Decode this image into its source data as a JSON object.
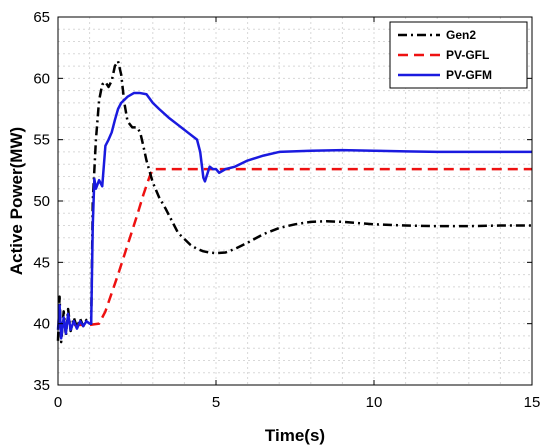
{
  "chart_data": {
    "type": "line",
    "title": "",
    "xlabel": "Time(s)",
    "ylabel": "Active Power(MW)",
    "xlim": [
      0,
      15
    ],
    "ylim": [
      35,
      65
    ],
    "xticks": [
      0,
      5,
      10,
      15
    ],
    "yticks": [
      35,
      40,
      45,
      50,
      55,
      60,
      65
    ],
    "grid": true,
    "legend_position": "top-right",
    "series": [
      {
        "name": "Gen2",
        "color": "#000000",
        "style": "dashdot",
        "points": [
          [
            0,
            38.6
          ],
          [
            0.05,
            42.2
          ],
          [
            0.1,
            38.5
          ],
          [
            0.18,
            41.0
          ],
          [
            0.25,
            39.0
          ],
          [
            0.32,
            41.2
          ],
          [
            0.4,
            39.4
          ],
          [
            0.5,
            40.5
          ],
          [
            0.6,
            39.7
          ],
          [
            0.7,
            40.4
          ],
          [
            0.8,
            39.8
          ],
          [
            0.9,
            40.3
          ],
          [
            1.0,
            40.1
          ],
          [
            1.05,
            40.0
          ],
          [
            1.1,
            50.0
          ],
          [
            1.2,
            55.0
          ],
          [
            1.3,
            58.2
          ],
          [
            1.4,
            59.5
          ],
          [
            1.5,
            59.7
          ],
          [
            1.6,
            59.3
          ],
          [
            1.7,
            59.8
          ],
          [
            1.8,
            61.0
          ],
          [
            1.9,
            61.4
          ],
          [
            2.0,
            60.3
          ],
          [
            2.1,
            58.0
          ],
          [
            2.2,
            56.5
          ],
          [
            2.35,
            56.0
          ],
          [
            2.5,
            56.0
          ],
          [
            2.6,
            55.6
          ],
          [
            2.7,
            54.5
          ],
          [
            2.8,
            53.3
          ],
          [
            3.0,
            51.5
          ],
          [
            3.2,
            50.3
          ],
          [
            3.4,
            49.4
          ],
          [
            3.6,
            48.4
          ],
          [
            3.8,
            47.4
          ],
          [
            4.0,
            46.9
          ],
          [
            4.2,
            46.4
          ],
          [
            4.4,
            46.1
          ],
          [
            4.6,
            45.9
          ],
          [
            4.8,
            45.8
          ],
          [
            5.0,
            45.75
          ],
          [
            5.3,
            45.8
          ],
          [
            5.6,
            46.1
          ],
          [
            6.0,
            46.6
          ],
          [
            6.5,
            47.3
          ],
          [
            7.0,
            47.8
          ],
          [
            7.5,
            48.1
          ],
          [
            8.0,
            48.3
          ],
          [
            8.5,
            48.35
          ],
          [
            9.0,
            48.3
          ],
          [
            9.5,
            48.2
          ],
          [
            10.0,
            48.1
          ],
          [
            11.0,
            48.0
          ],
          [
            12.0,
            47.95
          ],
          [
            13.0,
            47.95
          ],
          [
            14.0,
            48.0
          ],
          [
            15.0,
            48.0
          ]
        ]
      },
      {
        "name": "PV-GFL",
        "color": "#ee1111",
        "style": "dashed",
        "points": [
          [
            0,
            39.8
          ],
          [
            0.5,
            39.9
          ],
          [
            1.0,
            39.9
          ],
          [
            1.3,
            40.0
          ],
          [
            1.5,
            41.0
          ],
          [
            1.7,
            42.5
          ],
          [
            1.9,
            44.0
          ],
          [
            2.1,
            45.6
          ],
          [
            2.3,
            47.2
          ],
          [
            2.5,
            48.8
          ],
          [
            2.7,
            50.5
          ],
          [
            2.9,
            52.0
          ],
          [
            3.0,
            52.6
          ],
          [
            5.0,
            52.6
          ],
          [
            10.0,
            52.6
          ],
          [
            15.0,
            52.6
          ]
        ]
      },
      {
        "name": "PV-GFM",
        "color": "#1a1adf",
        "style": "solid",
        "points": [
          [
            0,
            39.5
          ],
          [
            0.05,
            41.5
          ],
          [
            0.1,
            38.8
          ],
          [
            0.18,
            40.5
          ],
          [
            0.25,
            39.2
          ],
          [
            0.32,
            40.8
          ],
          [
            0.4,
            39.5
          ],
          [
            0.5,
            40.2
          ],
          [
            0.6,
            39.6
          ],
          [
            0.7,
            40.2
          ],
          [
            0.8,
            39.8
          ],
          [
            0.9,
            40.2
          ],
          [
            1.0,
            40.0
          ],
          [
            1.05,
            40.0
          ],
          [
            1.1,
            48.0
          ],
          [
            1.15,
            51.8
          ],
          [
            1.2,
            51.0
          ],
          [
            1.3,
            51.7
          ],
          [
            1.4,
            51.2
          ],
          [
            1.5,
            54.5
          ],
          [
            1.6,
            55.0
          ],
          [
            1.7,
            55.6
          ],
          [
            1.8,
            56.6
          ],
          [
            1.9,
            57.5
          ],
          [
            2.0,
            58.0
          ],
          [
            2.2,
            58.5
          ],
          [
            2.4,
            58.8
          ],
          [
            2.6,
            58.8
          ],
          [
            2.8,
            58.7
          ],
          [
            3.0,
            58.0
          ],
          [
            3.2,
            57.5
          ],
          [
            3.5,
            56.8
          ],
          [
            3.8,
            56.2
          ],
          [
            4.1,
            55.6
          ],
          [
            4.4,
            55.0
          ],
          [
            4.5,
            54.0
          ],
          [
            4.6,
            51.9
          ],
          [
            4.65,
            51.6
          ],
          [
            4.8,
            52.8
          ],
          [
            4.9,
            52.6
          ],
          [
            5.0,
            52.6
          ],
          [
            5.1,
            52.3
          ],
          [
            5.3,
            52.6
          ],
          [
            5.6,
            52.8
          ],
          [
            6.0,
            53.3
          ],
          [
            6.5,
            53.7
          ],
          [
            7.0,
            54.0
          ],
          [
            8.0,
            54.1
          ],
          [
            9.0,
            54.15
          ],
          [
            10.0,
            54.1
          ],
          [
            11.0,
            54.05
          ],
          [
            12.0,
            54.0
          ],
          [
            13.0,
            54.0
          ],
          [
            14.0,
            54.0
          ],
          [
            15.0,
            54.0
          ]
        ]
      }
    ]
  }
}
